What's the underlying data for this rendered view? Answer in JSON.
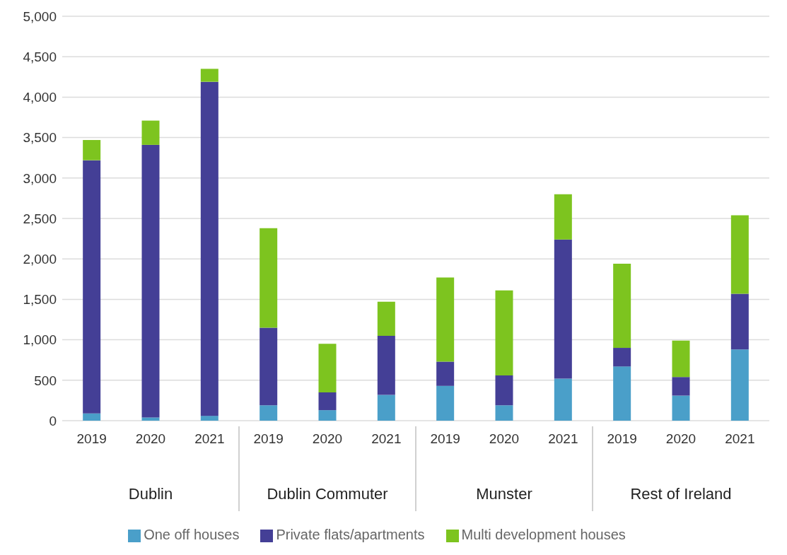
{
  "chart_data": {
    "type": "bar",
    "stacked": true,
    "categories": [
      "2019",
      "2020",
      "2021",
      "2019",
      "2020",
      "2021",
      "2019",
      "2020",
      "2021",
      "2019",
      "2020",
      "2021"
    ],
    "annotations": [
      "Dublin",
      "Dublin Commuter",
      "Munster",
      "Rest of Ireland"
    ],
    "series": [
      {
        "name": "One off houses",
        "color": "#4a9fc9",
        "values": [
          90,
          40,
          60,
          190,
          130,
          320,
          430,
          190,
          520,
          670,
          310,
          880
        ]
      },
      {
        "name": "Private flats/apartments",
        "color": "#443f96",
        "values": [
          3130,
          3370,
          4130,
          960,
          220,
          730,
          300,
          370,
          1720,
          230,
          230,
          690
        ]
      },
      {
        "name": "Multi development houses",
        "color": "#7dc41f",
        "values": [
          250,
          300,
          160,
          1230,
          600,
          420,
          1040,
          1050,
          560,
          1040,
          450,
          970
        ]
      }
    ],
    "ylim": [
      0,
      5000
    ],
    "yticks": [
      {
        "value": 0,
        "label": "0"
      },
      {
        "value": 500,
        "label": "500"
      },
      {
        "value": 1000,
        "label": "1,000"
      },
      {
        "value": 1500,
        "label": "1,500"
      },
      {
        "value": 2000,
        "label": "2,000"
      },
      {
        "value": 2500,
        "label": "2,500"
      },
      {
        "value": 3000,
        "label": "3,000"
      },
      {
        "value": 3500,
        "label": "3,500"
      },
      {
        "value": 4000,
        "label": "4,000"
      },
      {
        "value": 4500,
        "label": "4,500"
      },
      {
        "value": 5000,
        "label": "5,000"
      }
    ],
    "grid": "y",
    "legend": "bottom"
  }
}
